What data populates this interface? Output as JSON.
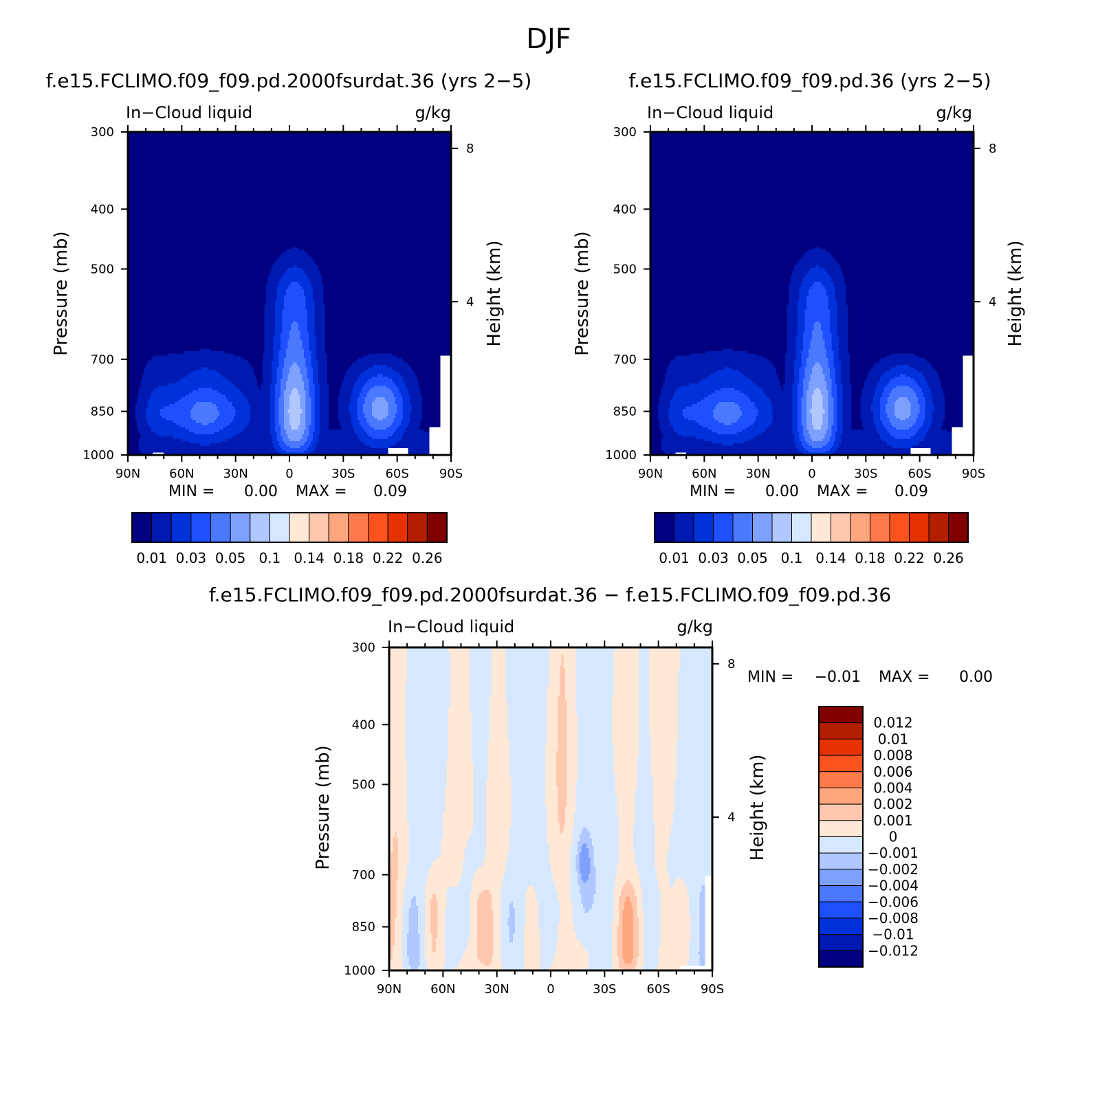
{
  "page_title": "DJF",
  "colors": {
    "blank": "#ffffff",
    "abs_levels": [
      "#000080",
      "#0019b0",
      "#0032dc",
      "#1e50ff",
      "#4a78ff",
      "#7ea0ff",
      "#b0c8ff",
      "#d6e8ff",
      "#ffe8d6",
      "#ffc8ae",
      "#ffa67e",
      "#ff7a4a",
      "#ff531e",
      "#e63200",
      "#b41e00",
      "#800000"
    ],
    "diff_levels": [
      "#000080",
      "#0019b0",
      "#0032dc",
      "#1e50ff",
      "#4a78ff",
      "#7ea0ff",
      "#b0c8ff",
      "#d6e8ff",
      "#ffe8d6",
      "#ffc8ae",
      "#ffa67e",
      "#ff7a4a",
      "#ff531e",
      "#e63200",
      "#b41e00",
      "#800000"
    ]
  },
  "chart_data": [
    {
      "type": "heatmap",
      "title": "f.e15.FCLIMO.f09_f09.pd.2000fsurdat.36 (yrs 2−5)",
      "variable": "In−Cloud liquid",
      "units": "g/kg",
      "ylabel": "Pressure (mb)",
      "ylabel_right": "Height (km)",
      "xticks": [
        "90N",
        "60N",
        "30N",
        "0",
        "30S",
        "60S",
        "90S"
      ],
      "xlim": [
        90,
        -90
      ],
      "yticks": [
        300,
        400,
        500,
        700,
        850,
        1000
      ],
      "ylim": [
        1000,
        300
      ],
      "y_log_scale": true,
      "right_ticks": [
        8,
        4
      ],
      "min_label": "MIN =",
      "min_value": "0.00",
      "max_label": "MAX =",
      "max_value": "0.09",
      "colorbar": {
        "orientation": "horizontal",
        "levels": [
          0.01,
          0.02,
          0.03,
          0.04,
          0.05,
          0.07,
          0.1,
          0.12,
          0.14,
          0.16,
          0.18,
          0.2,
          0.22,
          0.24,
          0.26
        ],
        "labels": [
          "0.01",
          "0.03",
          "0.05",
          "0.1",
          "0.14",
          "0.18",
          "0.22",
          "0.26"
        ]
      },
      "features": {
        "tropical_core": {
          "center_lat": -3,
          "top_pressure": 500,
          "max_class": 6
        },
        "nh_lowlevel": {
          "lat_range": [
            78,
            22
          ],
          "top_pressure": 690,
          "max_class": 4
        },
        "sh_lowlevel": {
          "lat_range": [
            -28,
            -73
          ],
          "top_pressure": 710,
          "max_class": 5
        }
      }
    },
    {
      "type": "heatmap",
      "title": "f.e15.FCLIMO.f09_f09.pd.36 (yrs 2−5)",
      "variable": "In−Cloud liquid",
      "units": "g/kg",
      "ylabel": "Pressure (mb)",
      "ylabel_right": "Height (km)",
      "xticks": [
        "90N",
        "60N",
        "30N",
        "0",
        "30S",
        "60S",
        "90S"
      ],
      "xlim": [
        90,
        -90
      ],
      "yticks": [
        300,
        400,
        500,
        700,
        850,
        1000
      ],
      "ylim": [
        1000,
        300
      ],
      "y_log_scale": true,
      "right_ticks": [
        8,
        4
      ],
      "min_label": "MIN =",
      "min_value": "0.00",
      "max_label": "MAX =",
      "max_value": "0.09",
      "colorbar": {
        "orientation": "horizontal",
        "levels": [
          0.01,
          0.02,
          0.03,
          0.04,
          0.05,
          0.07,
          0.1,
          0.12,
          0.14,
          0.16,
          0.18,
          0.2,
          0.22,
          0.24,
          0.26
        ],
        "labels": [
          "0.01",
          "0.03",
          "0.05",
          "0.1",
          "0.14",
          "0.18",
          "0.22",
          "0.26"
        ]
      },
      "features": {
        "tropical_core": {
          "center_lat": -3,
          "top_pressure": 500,
          "max_class": 6
        },
        "nh_lowlevel": {
          "lat_range": [
            78,
            22
          ],
          "top_pressure": 690,
          "max_class": 4
        },
        "sh_lowlevel": {
          "lat_range": [
            -28,
            -73
          ],
          "top_pressure": 710,
          "max_class": 5
        }
      }
    },
    {
      "type": "heatmap",
      "title": "f.e15.FCLIMO.f09_f09.pd.2000fsurdat.36 − f.e15.FCLIMO.f09_f09.pd.36",
      "variable": "In−Cloud liquid",
      "units": "g/kg",
      "ylabel": "Pressure (mb)",
      "ylabel_right": "Height (km)",
      "xticks": [
        "90N",
        "60N",
        "30N",
        "0",
        "30S",
        "60S",
        "90S"
      ],
      "xlim": [
        90,
        -90
      ],
      "yticks": [
        300,
        400,
        500,
        700,
        850,
        1000
      ],
      "ylim": [
        1000,
        300
      ],
      "y_log_scale": true,
      "right_ticks": [
        8,
        4
      ],
      "min_label": "MIN =",
      "min_value": "−0.01",
      "max_label": "MAX =",
      "max_value": "0.00",
      "colorbar": {
        "orientation": "vertical",
        "labels": [
          "0.012",
          "0.01",
          "0.008",
          "0.006",
          "0.004",
          "0.002",
          "0.001",
          "0",
          "−0.001",
          "−0.002",
          "−0.004",
          "−0.006",
          "−0.008",
          "−0.01",
          "−0.012"
        ]
      },
      "features": {
        "note": "mostly near-zero differences (light blue / light orange bands) with small stronger patches below 700 mb"
      }
    }
  ]
}
